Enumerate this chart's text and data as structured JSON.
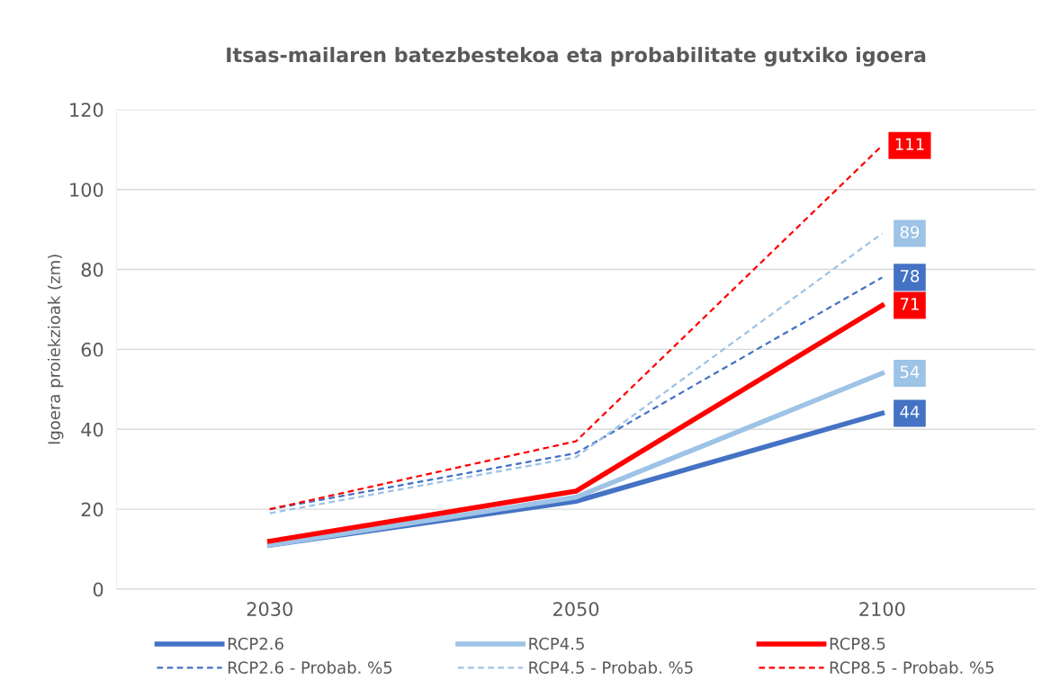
{
  "chart_data": {
    "type": "line",
    "title": "Itsas-mailaren batezbestekoa eta probabilitate gutxiko igoera",
    "ylabel": "Igoera proiekzioak (zm)",
    "categories": [
      "2030",
      "2050",
      "2100"
    ],
    "series": [
      {
        "name": "RCP2.6",
        "color": "#4472c4",
        "line_style": "solid",
        "values": [
          11,
          22,
          44
        ],
        "value_labels": [
          null,
          null,
          "44"
        ]
      },
      {
        "name": "RCP4.5",
        "color": "#9dc3e6",
        "line_style": "solid",
        "values": [
          11,
          23,
          54
        ],
        "value_labels": [
          null,
          null,
          "54"
        ]
      },
      {
        "name": "RCP8.5",
        "color": "#ff0000",
        "line_style": "solid",
        "values": [
          12,
          24.5,
          71
        ],
        "value_labels": [
          null,
          null,
          "71"
        ]
      },
      {
        "name": "RCP2.6 - Probab. %5",
        "color": "#4472c4",
        "line_style": "dashed",
        "values": [
          20,
          34,
          78
        ],
        "value_labels": [
          null,
          null,
          "78"
        ]
      },
      {
        "name": "RCP4.5 - Probab. %5",
        "color": "#9dc3e6",
        "line_style": "dashed",
        "values": [
          19,
          33,
          89
        ],
        "value_labels": [
          null,
          null,
          "89"
        ]
      },
      {
        "name": "RCP8.5 - Probab. %5",
        "color": "#ff0000",
        "line_style": "dashed",
        "values": [
          20,
          37,
          111
        ],
        "value_labels": [
          null,
          null,
          "111"
        ]
      }
    ],
    "ylim": [
      0,
      120
    ],
    "yticks": [
      0,
      20,
      40,
      60,
      80,
      100,
      120
    ],
    "grid": "y",
    "legend": "bottom",
    "marker": "none"
  }
}
